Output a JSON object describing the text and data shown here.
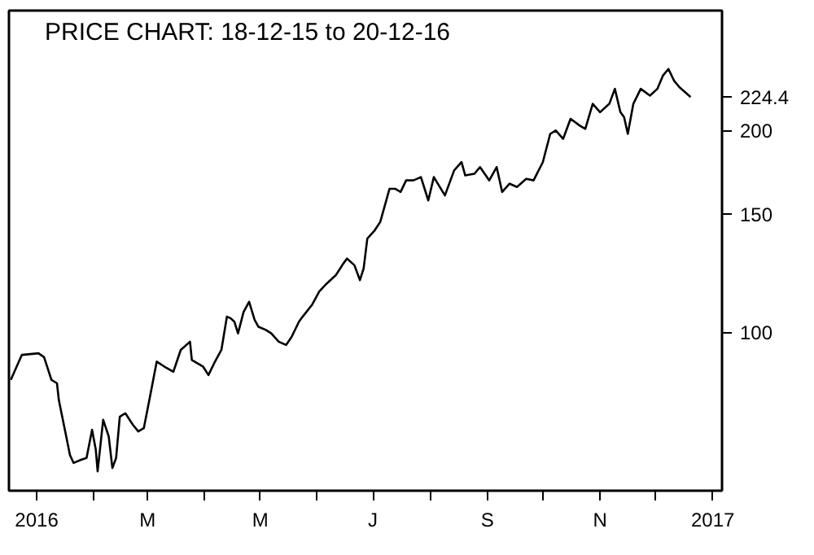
{
  "chart_data": {
    "type": "line",
    "title": "PRICE CHART: 18-12-15 to 20-12-16",
    "x": [
      "2015-12-18",
      "2015-12-24",
      "2016-01-02",
      "2016-01-05",
      "2016-01-09",
      "2016-01-12",
      "2016-01-13",
      "2016-01-17",
      "2016-01-19",
      "2016-01-21",
      "2016-01-25",
      "2016-01-28",
      "2016-01-31",
      "2016-02-02",
      "2016-02-03",
      "2016-02-06",
      "2016-02-09",
      "2016-02-11",
      "2016-02-13",
      "2016-02-15",
      "2016-02-18",
      "2016-02-22",
      "2016-02-25",
      "2016-02-28",
      "2016-03-02",
      "2016-03-06",
      "2016-03-10",
      "2016-03-15",
      "2016-03-19",
      "2016-03-24",
      "2016-03-25",
      "2016-03-31",
      "2016-04-03",
      "2016-04-06",
      "2016-04-10",
      "2016-04-13",
      "2016-04-15",
      "2016-04-17",
      "2016-04-19",
      "2016-04-22",
      "2016-04-25",
      "2016-04-28",
      "2016-04-30",
      "2016-05-04",
      "2016-05-07",
      "2016-05-11",
      "2016-05-15",
      "2016-05-18",
      "2016-05-22",
      "2016-05-24",
      "2016-05-29",
      "2016-06-02",
      "2016-06-06",
      "2016-06-11",
      "2016-06-15",
      "2016-06-17",
      "2016-06-21",
      "2016-06-24",
      "2016-06-26",
      "2016-06-28",
      "2016-07-02",
      "2016-07-05",
      "2016-07-07",
      "2016-07-10",
      "2016-07-13",
      "2016-07-16",
      "2016-07-19",
      "2016-07-23",
      "2016-07-27",
      "2016-07-31",
      "2016-08-03",
      "2016-08-09",
      "2016-08-14",
      "2016-08-18",
      "2016-08-20",
      "2016-08-25",
      "2016-08-28",
      "2016-09-02",
      "2016-09-06",
      "2016-09-09",
      "2016-09-13",
      "2016-09-17",
      "2016-09-22",
      "2016-09-26",
      "2016-10-01",
      "2016-10-05",
      "2016-10-08",
      "2016-10-12",
      "2016-10-16",
      "2016-10-21",
      "2016-10-24",
      "2016-10-28",
      "2016-11-01",
      "2016-11-06",
      "2016-11-09",
      "2016-11-12",
      "2016-11-14",
      "2016-11-16",
      "2016-11-19",
      "2016-11-23",
      "2016-11-28",
      "2016-12-02",
      "2016-12-05",
      "2016-12-08",
      "2016-12-11",
      "2016-12-14",
      "2016-12-20"
    ],
    "series": [
      {
        "color": "#000000",
        "values": [
          84.9,
          92.5,
          93.0,
          91.8,
          84.9,
          83.9,
          79.2,
          69.9,
          65.6,
          63.8,
          64.5,
          64.9,
          71.5,
          66.8,
          62.0,
          74.0,
          69.9,
          62.7,
          64.9,
          74.8,
          75.7,
          72.8,
          71.1,
          71.9,
          79.2,
          90.4,
          88.9,
          87.3,
          94.1,
          96.8,
          90.9,
          88.9,
          86.3,
          89.8,
          94.1,
          105.5,
          104.9,
          103.7,
          99.6,
          107.2,
          111.0,
          104.3,
          101.9,
          100.8,
          99.6,
          96.8,
          95.7,
          98.4,
          103.7,
          105.5,
          109.8,
          115.0,
          118.2,
          121.7,
          126.6,
          128.8,
          125.9,
          119.6,
          124.5,
          138.0,
          141.9,
          146.1,
          152.9,
          163.7,
          163.7,
          161.9,
          168.5,
          168.5,
          170.4,
          157.3,
          170.4,
          160.0,
          174.4,
          179.4,
          171.4,
          172.4,
          176.4,
          168.5,
          176.4,
          161.9,
          166.6,
          164.7,
          169.4,
          168.5,
          179.4,
          197.7,
          200.0,
          194.4,
          208.2,
          203.4,
          201.1,
          219.2,
          213.0,
          219.2,
          230.8,
          213.0,
          209.4,
          197.7,
          219.2,
          230.8,
          225.5,
          230.8,
          241.5,
          247.1,
          237.4,
          232.0,
          224.4
        ]
      }
    ],
    "xlim": [
      "2015-12-17",
      "2017-01-06"
    ],
    "xticks": [
      {
        "value": "2016-01-01",
        "label": "2016"
      },
      {
        "value": "2016-02-01",
        "label": null
      },
      {
        "value": "2016-03-01",
        "label": "M"
      },
      {
        "value": "2016-04-01",
        "label": null
      },
      {
        "value": "2016-05-01",
        "label": "M"
      },
      {
        "value": "2016-06-01",
        "label": null
      },
      {
        "value": "2016-07-01",
        "label": "J"
      },
      {
        "value": "2016-08-01",
        "label": null
      },
      {
        "value": "2016-09-01",
        "label": "S"
      },
      {
        "value": "2016-10-01",
        "label": null
      },
      {
        "value": "2016-11-01",
        "label": "N"
      },
      {
        "value": "2016-12-01",
        "label": null
      },
      {
        "value": "2017-01-01",
        "label": "2017"
      }
    ],
    "ylim": [
      58,
      302
    ],
    "yticks": [
      100,
      150,
      200,
      224.4
    ],
    "log": true,
    "grid": false,
    "marker": "none",
    "line_style": "solid"
  }
}
